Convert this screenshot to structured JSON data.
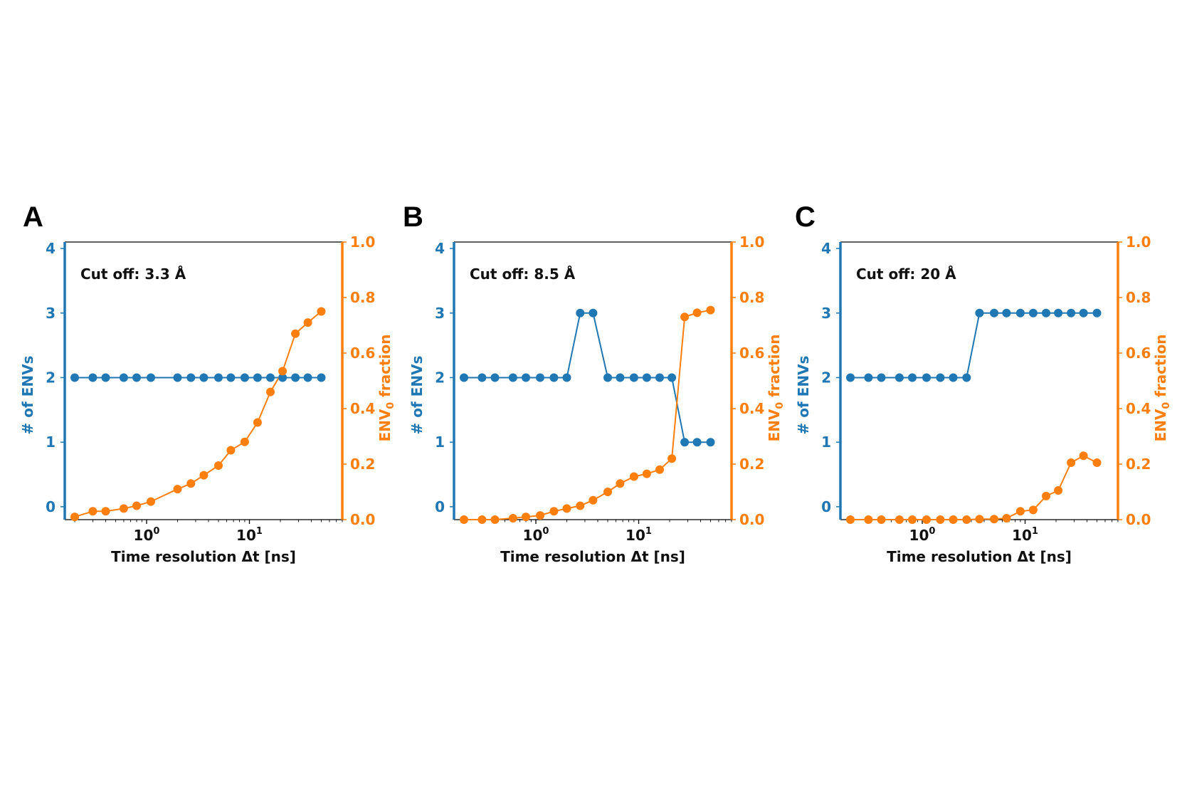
{
  "colors": {
    "blue": "#1f77b4",
    "orange": "#ff7f0e",
    "frame": "#000000"
  },
  "chart_data": [
    {
      "type": "line",
      "panel": "A",
      "annotation": "Cut off: 3.3 Å",
      "xlabel": "Time resolution Δt [ns]",
      "xscale": "log",
      "xlim": [
        0.16,
        80
      ],
      "xticks": [
        {
          "value": 1,
          "base": "10",
          "exp": "0"
        },
        {
          "value": 10,
          "base": "10",
          "exp": "1"
        }
      ],
      "ylabel_left": "# of ENVs",
      "ylim_left": [
        -0.2,
        4.1
      ],
      "yticks_left": [
        0,
        1,
        2,
        3,
        4
      ],
      "ylabel_right": {
        "prefix": "ENV",
        "sub": "0",
        "suffix": " fraction"
      },
      "ylim_right": [
        0,
        1.0
      ],
      "yticks_right": [
        "0.0",
        "0.2",
        "0.4",
        "0.6",
        "0.8",
        "1.0"
      ],
      "series": [
        {
          "name": "# of ENVs",
          "axis": "left",
          "color": "#1f77b4",
          "x": [
            0.2,
            0.3,
            0.4,
            0.6,
            0.8,
            1.1,
            2.0,
            2.7,
            3.6,
            5.0,
            6.6,
            9.0,
            12,
            16,
            21,
            28,
            37,
            50
          ],
          "values": [
            2,
            2,
            2,
            2,
            2,
            2,
            2,
            2,
            2,
            2,
            2,
            2,
            2,
            2,
            2,
            2,
            2,
            2
          ]
        },
        {
          "name": "ENV0 fraction",
          "axis": "right",
          "color": "#ff7f0e",
          "x": [
            0.2,
            0.3,
            0.4,
            0.6,
            0.8,
            1.1,
            2.0,
            2.7,
            3.6,
            5.0,
            6.6,
            9.0,
            12,
            16,
            21,
            28,
            37,
            50
          ],
          "values": [
            0.01,
            0.03,
            0.03,
            0.04,
            0.05,
            0.065,
            0.11,
            0.13,
            0.16,
            0.195,
            0.25,
            0.28,
            0.35,
            0.46,
            0.535,
            0.67,
            0.71,
            0.75
          ]
        }
      ]
    },
    {
      "type": "line",
      "panel": "B",
      "annotation": "Cut off: 8.5 Å",
      "xlabel": "Time resolution Δt [ns]",
      "xscale": "log",
      "xlim": [
        0.16,
        80
      ],
      "xticks": [
        {
          "value": 1,
          "base": "10",
          "exp": "0"
        },
        {
          "value": 10,
          "base": "10",
          "exp": "1"
        }
      ],
      "ylabel_left": "# of ENVs",
      "ylim_left": [
        -0.2,
        4.1
      ],
      "yticks_left": [
        0,
        1,
        2,
        3,
        4
      ],
      "ylabel_right": {
        "prefix": "ENV",
        "sub": "0",
        "suffix": " fraction"
      },
      "ylim_right": [
        0,
        1.0
      ],
      "yticks_right": [
        "0.0",
        "0.2",
        "0.4",
        "0.6",
        "0.8",
        "1.0"
      ],
      "series": [
        {
          "name": "# of ENVs",
          "axis": "left",
          "color": "#1f77b4",
          "x": [
            0.2,
            0.3,
            0.4,
            0.6,
            0.8,
            1.1,
            1.5,
            2.0,
            2.7,
            3.6,
            5.0,
            6.6,
            9.0,
            12,
            16,
            21,
            28,
            37,
            50
          ],
          "values": [
            2,
            2,
            2,
            2,
            2,
            2,
            2,
            2,
            3,
            3,
            2,
            2,
            2,
            2,
            2,
            2,
            1,
            1,
            1
          ]
        },
        {
          "name": "ENV0 fraction",
          "axis": "right",
          "color": "#ff7f0e",
          "x": [
            0.2,
            0.3,
            0.4,
            0.6,
            0.8,
            1.1,
            1.5,
            2.0,
            2.7,
            3.6,
            5.0,
            6.6,
            9.0,
            12,
            16,
            21,
            28,
            37,
            50
          ],
          "values": [
            0.0,
            0.0,
            0.0,
            0.005,
            0.01,
            0.015,
            0.03,
            0.04,
            0.05,
            0.07,
            0.1,
            0.13,
            0.155,
            0.165,
            0.18,
            0.22,
            0.73,
            0.745,
            0.755
          ]
        }
      ]
    },
    {
      "type": "line",
      "panel": "C",
      "annotation": "Cut off: 20 Å",
      "xlabel": "Time resolution Δt [ns]",
      "xscale": "log",
      "xlim": [
        0.16,
        80
      ],
      "xticks": [
        {
          "value": 1,
          "base": "10",
          "exp": "0"
        },
        {
          "value": 10,
          "base": "10",
          "exp": "1"
        }
      ],
      "ylabel_left": "# of ENVs",
      "ylim_left": [
        -0.2,
        4.1
      ],
      "yticks_left": [
        0,
        1,
        2,
        3,
        4
      ],
      "ylabel_right": {
        "prefix": "ENV",
        "sub": "0",
        "suffix": " fraction"
      },
      "ylim_right": [
        0,
        1.0
      ],
      "yticks_right": [
        "0.0",
        "0.2",
        "0.4",
        "0.6",
        "0.8",
        "1.0"
      ],
      "series": [
        {
          "name": "# of ENVs",
          "axis": "left",
          "color": "#1f77b4",
          "x": [
            0.2,
            0.3,
            0.4,
            0.6,
            0.8,
            1.1,
            1.5,
            2.0,
            2.7,
            3.6,
            5.0,
            6.6,
            9.0,
            12,
            16,
            21,
            28,
            37,
            50
          ],
          "values": [
            2,
            2,
            2,
            2,
            2,
            2,
            2,
            2,
            2,
            3,
            3,
            3,
            3,
            3,
            3,
            3,
            3,
            3,
            3
          ]
        },
        {
          "name": "ENV0 fraction",
          "axis": "right",
          "color": "#ff7f0e",
          "x": [
            0.2,
            0.3,
            0.4,
            0.6,
            0.8,
            1.1,
            1.5,
            2.0,
            2.7,
            3.6,
            5.0,
            6.6,
            9.0,
            12,
            16,
            21,
            28,
            37,
            50
          ],
          "values": [
            0.0,
            0.0,
            0.0,
            0.0,
            0.0,
            0.0,
            0.0,
            0.0,
            0.0,
            0.002,
            0.002,
            0.005,
            0.03,
            0.035,
            0.085,
            0.105,
            0.205,
            0.23,
            0.205
          ]
        }
      ]
    }
  ]
}
